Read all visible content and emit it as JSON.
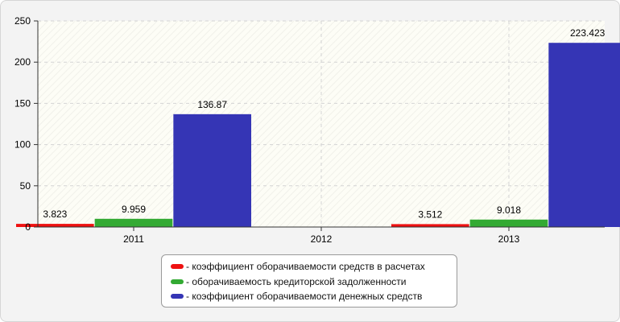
{
  "chart_data": {
    "type": "bar",
    "categories": [
      "2011",
      "2012",
      "2013"
    ],
    "series": [
      {
        "name": "- коэффициент оборачиваемости средств в расчетах",
        "color": "#ee1111",
        "values": [
          3.823,
          null,
          3.512
        ],
        "labels": [
          "3.823",
          "",
          "3.512"
        ]
      },
      {
        "name": "- оборачиваемость кредиторской задолженности",
        "color": "#33aa33",
        "values": [
          9.959,
          null,
          9.018
        ],
        "labels": [
          "9.959",
          "",
          "9.018"
        ]
      },
      {
        "name": "- коэффициент оборачиваемости денежных средств",
        "color": "#3535b5",
        "values": [
          136.87,
          null,
          223.423
        ],
        "labels": [
          "136.87",
          "",
          "223.423"
        ]
      }
    ],
    "ylim": [
      0,
      250
    ],
    "yticks": [
      "0",
      "50",
      "100",
      "150",
      "200",
      "250"
    ],
    "grid": true,
    "legend_position": "bottom"
  }
}
